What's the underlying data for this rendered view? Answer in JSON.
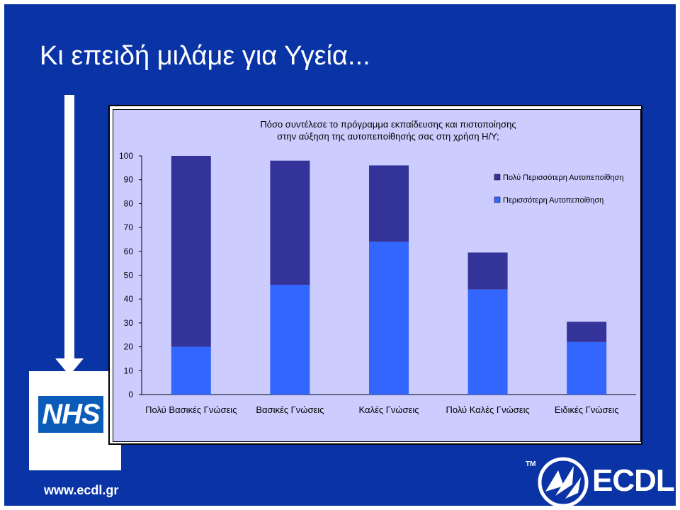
{
  "slide": {
    "title": "Κι επειδή μιλάμε για Υγεία...",
    "logo_text": "NHS",
    "website": "www.ecdl.gr",
    "brand": "ECDL",
    "trademark": "TM",
    "colors": {
      "background": "#0a34a6",
      "plot_area": "#ccccff",
      "nhs_blue": "#0a5cb8"
    }
  },
  "icons": [
    "down-arrow-icon",
    "nhs-logo",
    "ecdl-emblem-icon"
  ],
  "chart_data": {
    "type": "bar",
    "stacked": true,
    "title": "Πόσο συντέλεσε το πρόγραμμα εκπαίδευσης και πιστοποίησης\nστην αύξηση της αυτοπεποίθησής σας στη χρήση Η/Υ;",
    "categories": [
      "Πολύ Βασικές Γνώσεις",
      "Βασικές Γνώσεις",
      "Καλές Γνώσεις",
      "Πολύ Καλές Γνώσεις",
      "Ειδικές Γνώσεις"
    ],
    "series": [
      {
        "name": "Περισσότερη Αυτοπεποίθηση",
        "color": "#3366ff",
        "values": [
          20,
          46,
          64,
          44,
          22
        ]
      },
      {
        "name": "Πολύ Περισσότερη Αυτοπεποίθηση",
        "color": "#333399",
        "values": [
          80,
          52,
          32,
          15.5,
          8.5
        ]
      }
    ],
    "ylim": [
      0,
      100
    ],
    "yticks": [
      0,
      10,
      20,
      30,
      40,
      50,
      60,
      70,
      80,
      90,
      100
    ],
    "legend_position": "right",
    "grid": false
  }
}
